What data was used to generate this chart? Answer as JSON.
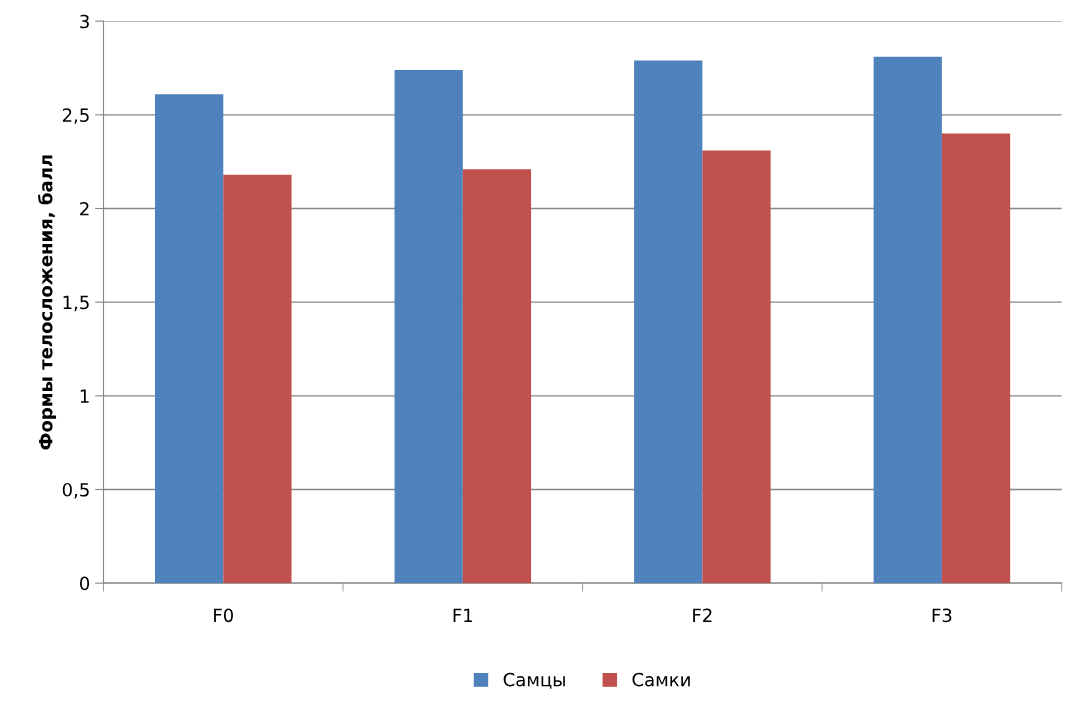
{
  "chart_data": {
    "type": "bar",
    "ylabel": "Формы телосложения, балл",
    "categories": [
      "F0",
      "F1",
      "F2",
      "F3"
    ],
    "series": [
      {
        "name": "Самцы",
        "color": "#4f81bd",
        "values": [
          2.61,
          2.74,
          2.79,
          2.81
        ]
      },
      {
        "name": "Самки",
        "color": "#c0504d",
        "values": [
          2.18,
          2.21,
          2.31,
          2.4
        ]
      }
    ],
    "ylim": [
      0,
      3
    ],
    "yticks": [
      0,
      {
        "value": 0.5,
        "label": "0,5"
      },
      1,
      {
        "value": 1.5,
        "label": "1,5"
      },
      2,
      {
        "value": 2.5,
        "label": "2,5"
      },
      3
    ],
    "grid": "y",
    "legend": "bottom"
  }
}
